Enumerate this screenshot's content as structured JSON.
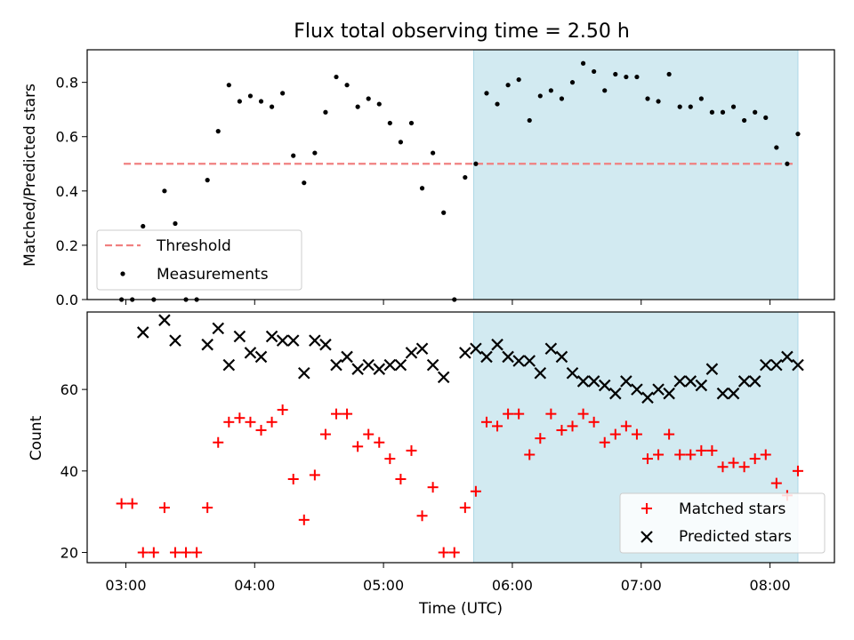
{
  "chart_data": [
    {
      "type": "scatter",
      "title": "Flux total observing time = 2.50 h",
      "ylabel": "Matched/Predicted stars",
      "xlim": [
        "02:42",
        "08:30"
      ],
      "ylim": [
        0,
        0.92
      ],
      "yticks": [
        "0.0",
        "0.2",
        "0.4",
        "0.6",
        "0.8"
      ],
      "ytick_values": [
        0,
        0.2,
        0.4,
        0.6,
        0.8
      ],
      "shaded_region": {
        "start": "05:42",
        "end": "08:13",
        "color": "#add8e6"
      },
      "threshold": {
        "name": "Threshold",
        "value": 0.5,
        "start": "02:59",
        "end": "08:11",
        "color": "#f08080",
        "style": "dashed"
      },
      "legend": {
        "placement": "lower left",
        "entries": [
          "Threshold",
          "Measurements"
        ]
      },
      "series": [
        {
          "name": "Measurements",
          "color": "#000000",
          "marker": "dot",
          "x": [
            "02:58",
            "03:03",
            "03:08",
            "03:13",
            "03:18",
            "03:23",
            "03:28",
            "03:33",
            "03:38",
            "03:43",
            "03:48",
            "03:53",
            "03:58",
            "04:03",
            "04:08",
            "04:13",
            "04:18",
            "04:23",
            "04:28",
            "04:33",
            "04:38",
            "04:43",
            "04:48",
            "04:53",
            "04:58",
            "05:03",
            "05:08",
            "05:13",
            "05:18",
            "05:23",
            "05:28",
            "05:33",
            "05:38",
            "05:43",
            "05:48",
            "05:53",
            "05:58",
            "06:03",
            "06:08",
            "06:13",
            "06:18",
            "06:23",
            "06:28",
            "06:33",
            "06:38",
            "06:43",
            "06:48",
            "06:53",
            "06:58",
            "07:03",
            "07:08",
            "07:13",
            "07:18",
            "07:23",
            "07:28",
            "07:33",
            "07:38",
            "07:43",
            "07:48",
            "07:53",
            "07:58",
            "08:03",
            "08:08",
            "08:13"
          ],
          "y": [
            0.0,
            0.0,
            0.27,
            0.0,
            0.4,
            0.28,
            0.0,
            0.0,
            0.44,
            0.62,
            0.79,
            0.73,
            0.75,
            0.73,
            0.71,
            0.76,
            0.53,
            0.43,
            0.54,
            0.69,
            0.82,
            0.79,
            0.71,
            0.74,
            0.72,
            0.65,
            0.58,
            0.65,
            0.41,
            0.54,
            0.32,
            0.0,
            0.45,
            0.5,
            0.76,
            0.72,
            0.79,
            0.81,
            0.66,
            0.75,
            0.77,
            0.74,
            0.8,
            0.87,
            0.84,
            0.77,
            0.83,
            0.82,
            0.82,
            0.74,
            0.73,
            0.83,
            0.71,
            0.71,
            0.74,
            0.69,
            0.69,
            0.71,
            0.66,
            0.69,
            0.67,
            0.56,
            0.5,
            0.61
          ]
        }
      ]
    },
    {
      "type": "scatter",
      "xlabel": "Time (UTC)",
      "ylabel": "Count",
      "xlim": [
        "02:42",
        "08:30"
      ],
      "ylim": [
        17.5,
        79
      ],
      "xticks": [
        "03:00",
        "04:00",
        "05:00",
        "06:00",
        "07:00",
        "08:00"
      ],
      "yticks": [
        "20",
        "40",
        "60"
      ],
      "ytick_values": [
        20,
        40,
        60
      ],
      "shaded_region": {
        "start": "05:42",
        "end": "08:13",
        "color": "#add8e6"
      },
      "legend": {
        "placement": "lower right",
        "entries": [
          "Matched stars",
          "Predicted stars"
        ]
      },
      "series": [
        {
          "name": "Matched stars",
          "color": "#ff0000",
          "marker": "plus",
          "x": [
            "02:58",
            "03:03",
            "03:08",
            "03:13",
            "03:18",
            "03:23",
            "03:28",
            "03:33",
            "03:38",
            "03:43",
            "03:48",
            "03:53",
            "03:58",
            "04:03",
            "04:08",
            "04:13",
            "04:18",
            "04:23",
            "04:28",
            "04:33",
            "04:38",
            "04:43",
            "04:48",
            "04:53",
            "04:58",
            "05:03",
            "05:08",
            "05:13",
            "05:18",
            "05:23",
            "05:28",
            "05:33",
            "05:38",
            "05:43",
            "05:48",
            "05:53",
            "05:58",
            "06:03",
            "06:08",
            "06:13",
            "06:18",
            "06:23",
            "06:28",
            "06:33",
            "06:38",
            "06:43",
            "06:48",
            "06:53",
            "06:58",
            "07:03",
            "07:08",
            "07:13",
            "07:18",
            "07:23",
            "07:28",
            "07:33",
            "07:38",
            "07:43",
            "07:48",
            "07:53",
            "07:58",
            "08:03",
            "08:08",
            "08:13"
          ],
          "y": [
            32,
            32,
            20,
            20,
            31,
            20,
            20,
            20,
            31,
            47,
            52,
            53,
            52,
            50,
            52,
            55,
            38,
            28,
            39,
            49,
            54,
            54,
            46,
            49,
            47,
            43,
            38,
            45,
            29,
            36,
            20,
            20,
            31,
            35,
            52,
            51,
            54,
            54,
            44,
            48,
            54,
            50,
            51,
            54,
            52,
            47,
            49,
            51,
            49,
            43,
            44,
            49,
            44,
            44,
            45,
            45,
            41,
            42,
            41,
            43,
            44,
            37,
            34,
            40
          ]
        },
        {
          "name": "Predicted stars",
          "color": "#000000",
          "marker": "x",
          "x": [
            "03:08",
            "03:18",
            "03:23",
            "03:38",
            "03:43",
            "03:48",
            "03:53",
            "03:58",
            "04:03",
            "04:08",
            "04:13",
            "04:18",
            "04:23",
            "04:28",
            "04:33",
            "04:38",
            "04:43",
            "04:48",
            "04:53",
            "04:58",
            "05:03",
            "05:08",
            "05:13",
            "05:18",
            "05:23",
            "05:28",
            "05:38",
            "05:43",
            "05:48",
            "05:53",
            "05:58",
            "06:03",
            "06:08",
            "06:13",
            "06:18",
            "06:23",
            "06:28",
            "06:33",
            "06:38",
            "06:43",
            "06:48",
            "06:53",
            "06:58",
            "07:03",
            "07:08",
            "07:13",
            "07:18",
            "07:23",
            "07:28",
            "07:33",
            "07:38",
            "07:43",
            "07:48",
            "07:53",
            "07:58",
            "08:03",
            "08:08",
            "08:13"
          ],
          "y": [
            74,
            77,
            72,
            71,
            75,
            66,
            73,
            69,
            68,
            73,
            72,
            72,
            64,
            72,
            71,
            66,
            68,
            65,
            66,
            65,
            66,
            66,
            69,
            70,
            66,
            63,
            69,
            70,
            68,
            71,
            68,
            67,
            67,
            64,
            70,
            68,
            64,
            62,
            62,
            61,
            59,
            62,
            60,
            58,
            60,
            59,
            62,
            62,
            61,
            65,
            59,
            59,
            62,
            62,
            66,
            66,
            68,
            66
          ]
        }
      ]
    }
  ]
}
